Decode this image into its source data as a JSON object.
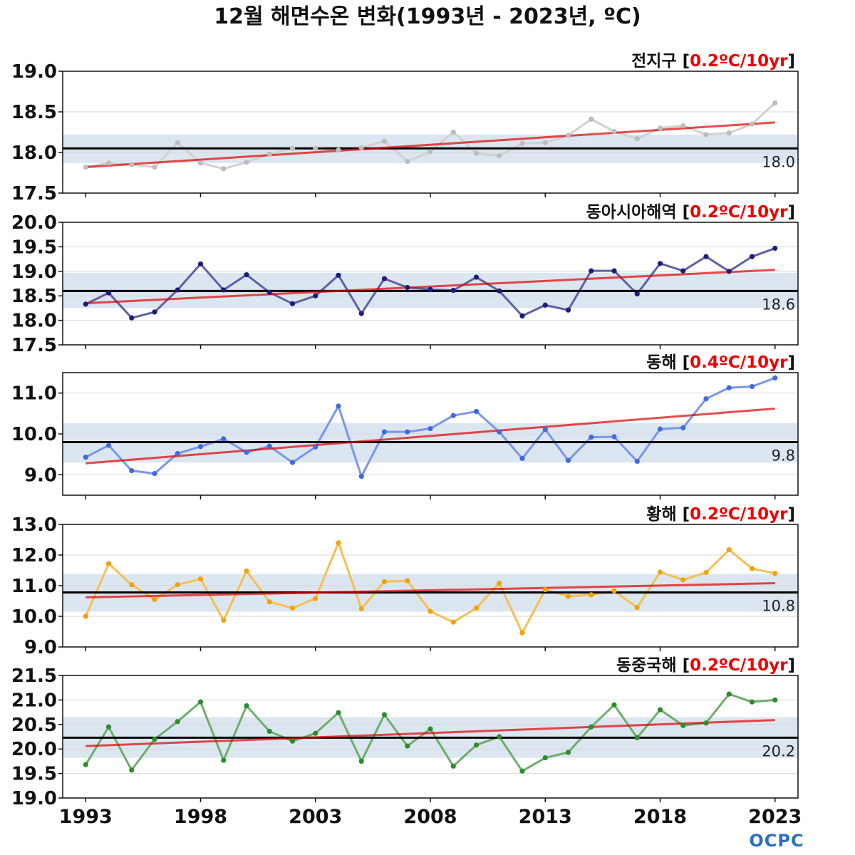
{
  "title": "12월 해면수온 변화(1993년 - 2023년, ºC)",
  "logo": "OCPC",
  "x_ticks": [
    "1993",
    "1998",
    "2003",
    "2008",
    "2013",
    "2018",
    "2023"
  ],
  "chart_data": [
    {
      "type": "line",
      "name": "전지구",
      "trend_label": "0.2ºC/10yr",
      "climatology": 18.05,
      "climatology_label": "18.0",
      "climatology_band": [
        17.87,
        18.22
      ],
      "trend_line": [
        17.82,
        18.37
      ],
      "ylim": [
        17.5,
        19.0
      ],
      "yticks": [
        "17.5",
        "18.0",
        "18.5",
        "19.0"
      ],
      "color": "#bdbdbd",
      "x": [
        1993,
        1994,
        1995,
        1996,
        1997,
        1998,
        1999,
        2000,
        2001,
        2002,
        2003,
        2004,
        2005,
        2006,
        2007,
        2008,
        2009,
        2010,
        2011,
        2012,
        2013,
        2014,
        2015,
        2016,
        2017,
        2018,
        2019,
        2020,
        2021,
        2022,
        2023
      ],
      "values": [
        17.82,
        17.87,
        17.85,
        17.82,
        18.12,
        17.87,
        17.8,
        17.88,
        17.98,
        18.05,
        18.05,
        18.03,
        18.06,
        18.14,
        17.89,
        18.01,
        18.25,
        17.99,
        17.96,
        18.11,
        18.12,
        18.21,
        18.41,
        18.26,
        18.17,
        18.3,
        18.33,
        18.22,
        18.24,
        18.35,
        18.61
      ]
    },
    {
      "type": "line",
      "name": "동아시아해역",
      "trend_label": "0.2ºC/10yr",
      "climatology": 18.6,
      "climatology_label": "18.6",
      "climatology_band": [
        18.25,
        18.97
      ],
      "trend_line": [
        18.35,
        19.03
      ],
      "ylim": [
        17.5,
        20.0
      ],
      "yticks": [
        "17.5",
        "18.0",
        "18.5",
        "19.0",
        "19.5",
        "20.0"
      ],
      "color": "#1c1c7a",
      "x": [
        1993,
        1994,
        1995,
        1996,
        1997,
        1998,
        1999,
        2000,
        2001,
        2002,
        2003,
        2004,
        2005,
        2006,
        2007,
        2008,
        2009,
        2010,
        2011,
        2012,
        2013,
        2014,
        2015,
        2016,
        2017,
        2018,
        2019,
        2020,
        2021,
        2022,
        2023
      ],
      "values": [
        18.33,
        18.56,
        18.05,
        18.17,
        18.62,
        19.15,
        18.62,
        18.93,
        18.57,
        18.34,
        18.5,
        18.92,
        18.14,
        18.85,
        18.67,
        18.63,
        18.61,
        18.88,
        18.6,
        18.09,
        18.31,
        18.21,
        19.01,
        19.01,
        18.54,
        19.16,
        19.01,
        19.3,
        19.0,
        19.3,
        19.47
      ]
    },
    {
      "type": "line",
      "name": "동해",
      "trend_label": "0.4ºC/10yr",
      "climatology": 9.8,
      "climatology_label": "9.8",
      "climatology_band": [
        9.3,
        10.27
      ],
      "trend_line": [
        9.28,
        10.62
      ],
      "ylim": [
        8.5,
        11.5
      ],
      "yticks": [
        "9.0",
        "10.0",
        "11.0"
      ],
      "color": "#4169e1",
      "x": [
        1993,
        1994,
        1995,
        1996,
        1997,
        1998,
        1999,
        2000,
        2001,
        2002,
        2003,
        2004,
        2005,
        2006,
        2007,
        2008,
        2009,
        2010,
        2011,
        2012,
        2013,
        2014,
        2015,
        2016,
        2017,
        2018,
        2019,
        2020,
        2021,
        2022,
        2023
      ],
      "values": [
        9.43,
        9.72,
        9.1,
        9.03,
        9.52,
        9.69,
        9.88,
        9.55,
        9.7,
        9.3,
        9.68,
        10.68,
        8.96,
        10.05,
        10.05,
        10.13,
        10.45,
        10.55,
        10.05,
        9.4,
        10.11,
        9.35,
        9.92,
        9.93,
        9.33,
        10.12,
        10.15,
        10.86,
        11.13,
        11.16,
        11.37
      ]
    },
    {
      "type": "line",
      "name": "황해",
      "trend_label": "0.2ºC/10yr",
      "climatology": 10.78,
      "climatology_label": "10.8",
      "climatology_band": [
        10.15,
        11.38
      ],
      "trend_line": [
        10.62,
        11.08
      ],
      "ylim": [
        9.0,
        13.0
      ],
      "yticks": [
        "9.0",
        "10.0",
        "11.0",
        "12.0",
        "13.0"
      ],
      "color": "#f0a30a",
      "x": [
        1993,
        1994,
        1995,
        1996,
        1997,
        1998,
        1999,
        2000,
        2001,
        2002,
        2003,
        2004,
        2005,
        2006,
        2007,
        2008,
        2009,
        2010,
        2011,
        2012,
        2013,
        2014,
        2015,
        2016,
        2017,
        2018,
        2019,
        2020,
        2021,
        2022,
        2023
      ],
      "values": [
        10.0,
        11.72,
        11.03,
        10.55,
        11.03,
        11.22,
        9.87,
        11.48,
        10.47,
        10.27,
        10.58,
        12.4,
        10.25,
        11.13,
        11.16,
        10.16,
        9.81,
        10.27,
        11.08,
        9.46,
        10.87,
        10.65,
        10.7,
        10.83,
        10.29,
        11.44,
        11.19,
        11.43,
        12.17,
        11.56,
        11.4
      ]
    },
    {
      "type": "line",
      "name": "동중국해",
      "trend_label": "0.2ºC/10yr",
      "climatology": 20.23,
      "climatology_label": "20.2",
      "climatology_band": [
        19.82,
        20.65
      ],
      "trend_line": [
        20.06,
        20.59
      ],
      "ylim": [
        19.0,
        21.5
      ],
      "yticks": [
        "19.0",
        "19.5",
        "20.0",
        "20.5",
        "21.0",
        "21.5"
      ],
      "color": "#2e8b2e",
      "x": [
        1993,
        1994,
        1995,
        1996,
        1997,
        1998,
        1999,
        2000,
        2001,
        2002,
        2003,
        2004,
        2005,
        2006,
        2007,
        2008,
        2009,
        2010,
        2011,
        2012,
        2013,
        2014,
        2015,
        2016,
        2017,
        2018,
        2019,
        2020,
        2021,
        2022,
        2023
      ],
      "values": [
        19.68,
        20.45,
        19.57,
        20.2,
        20.56,
        20.96,
        19.77,
        20.88,
        20.36,
        20.16,
        20.32,
        20.74,
        19.75,
        20.7,
        20.06,
        20.41,
        19.65,
        20.08,
        20.25,
        19.55,
        19.82,
        19.93,
        20.45,
        20.9,
        20.23,
        20.8,
        20.48,
        20.53,
        21.12,
        20.96,
        21.0
      ]
    }
  ]
}
